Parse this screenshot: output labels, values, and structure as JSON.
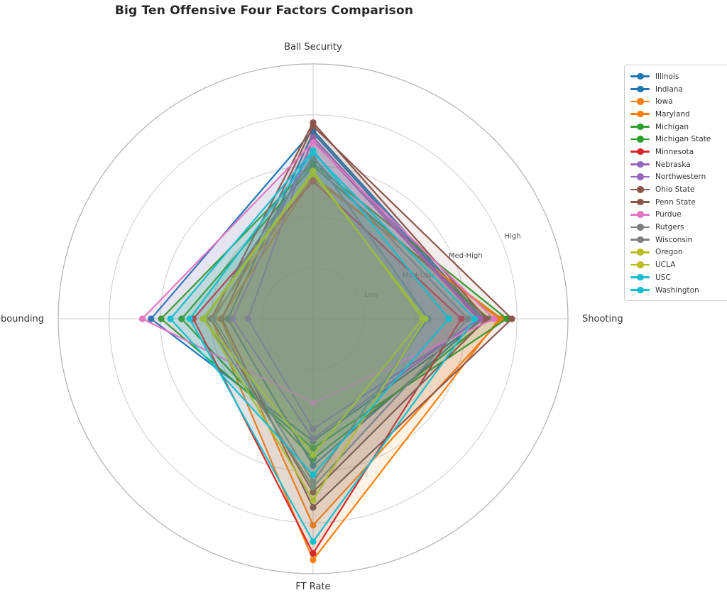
{
  "title": "Big Ten Offensive Four Factors Comparison",
  "chart_data": {
    "type": "radar",
    "categories": [
      "Ball Security",
      "Shooting",
      "FT Rate",
      "Off Rebounding"
    ],
    "angles_deg": [
      -90,
      0,
      90,
      180
    ],
    "r_max": 5,
    "grid": true,
    "legend_position": "upper right",
    "radial_ticks": [
      {
        "value": 1,
        "label": "Low"
      },
      {
        "value": 2,
        "label": "Med-Low"
      },
      {
        "value": 3,
        "label": "Med-High"
      },
      {
        "value": 4,
        "label": "High"
      }
    ],
    "tick_label_angle_deg": -22.5,
    "series": [
      {
        "name": "Illinois",
        "color": "#1f77b4",
        "values": [
          3.7,
          3.35,
          2.4,
          3.18
        ]
      },
      {
        "name": "Indiana",
        "color": "#1f77b4",
        "values": [
          3.65,
          3.3,
          2.88,
          1.67
        ]
      },
      {
        "name": "Iowa",
        "color": "#ff7f0e",
        "values": [
          2.8,
          3.65,
          4.73,
          2.0
        ]
      },
      {
        "name": "Maryland",
        "color": "#ff7f0e",
        "values": [
          2.76,
          3.7,
          4.05,
          1.82
        ]
      },
      {
        "name": "Michigan",
        "color": "#2ca02c",
        "values": [
          3.05,
          3.8,
          2.54,
          2.98
        ]
      },
      {
        "name": "Michigan State",
        "color": "#2ca02c",
        "values": [
          3.0,
          3.45,
          2.75,
          2.58
        ]
      },
      {
        "name": "Minnesota",
        "color": "#d62728",
        "values": [
          2.7,
          2.91,
          4.6,
          2.35
        ]
      },
      {
        "name": "Nebraska",
        "color": "#9467bd",
        "values": [
          3.56,
          3.28,
          2.16,
          1.28
        ]
      },
      {
        "name": "Northwestern",
        "color": "#9467bd",
        "values": [
          3.5,
          3.24,
          2.35,
          1.58
        ]
      },
      {
        "name": "Ohio State",
        "color": "#8c564b",
        "values": [
          3.85,
          3.4,
          3.4,
          2.0
        ]
      },
      {
        "name": "Penn State",
        "color": "#8c564b",
        "values": [
          3.78,
          3.9,
          3.7,
          1.79
        ]
      },
      {
        "name": "Purdue",
        "color": "#e377c2",
        "values": [
          3.46,
          3.55,
          1.65,
          3.35
        ]
      },
      {
        "name": "Rutgers",
        "color": "#7f7f7f",
        "values": [
          3.2,
          2.26,
          3.2,
          1.95
        ]
      },
      {
        "name": "Wisconsin",
        "color": "#7f7f7f",
        "values": [
          3.15,
          3.04,
          3.3,
          2.12
        ]
      },
      {
        "name": "Oregon",
        "color": "#bcbd22",
        "values": [
          2.9,
          2.15,
          2.67,
          2.16
        ]
      },
      {
        "name": "UCLA",
        "color": "#bcbd22",
        "values": [
          2.85,
          2.2,
          3.56,
          2.14
        ]
      },
      {
        "name": "USC",
        "color": "#17becf",
        "values": [
          3.3,
          2.66,
          3.06,
          2.8
        ]
      },
      {
        "name": "Washington",
        "color": "#17becf",
        "values": [
          3.26,
          3.17,
          4.37,
          2.42
        ]
      }
    ]
  },
  "style_colors": {
    "grid": "#cccccc",
    "outer_spine": "#b0b0b0",
    "tick_label": "#4d4d4d",
    "axis_label": "#333333",
    "title": "#262626"
  }
}
